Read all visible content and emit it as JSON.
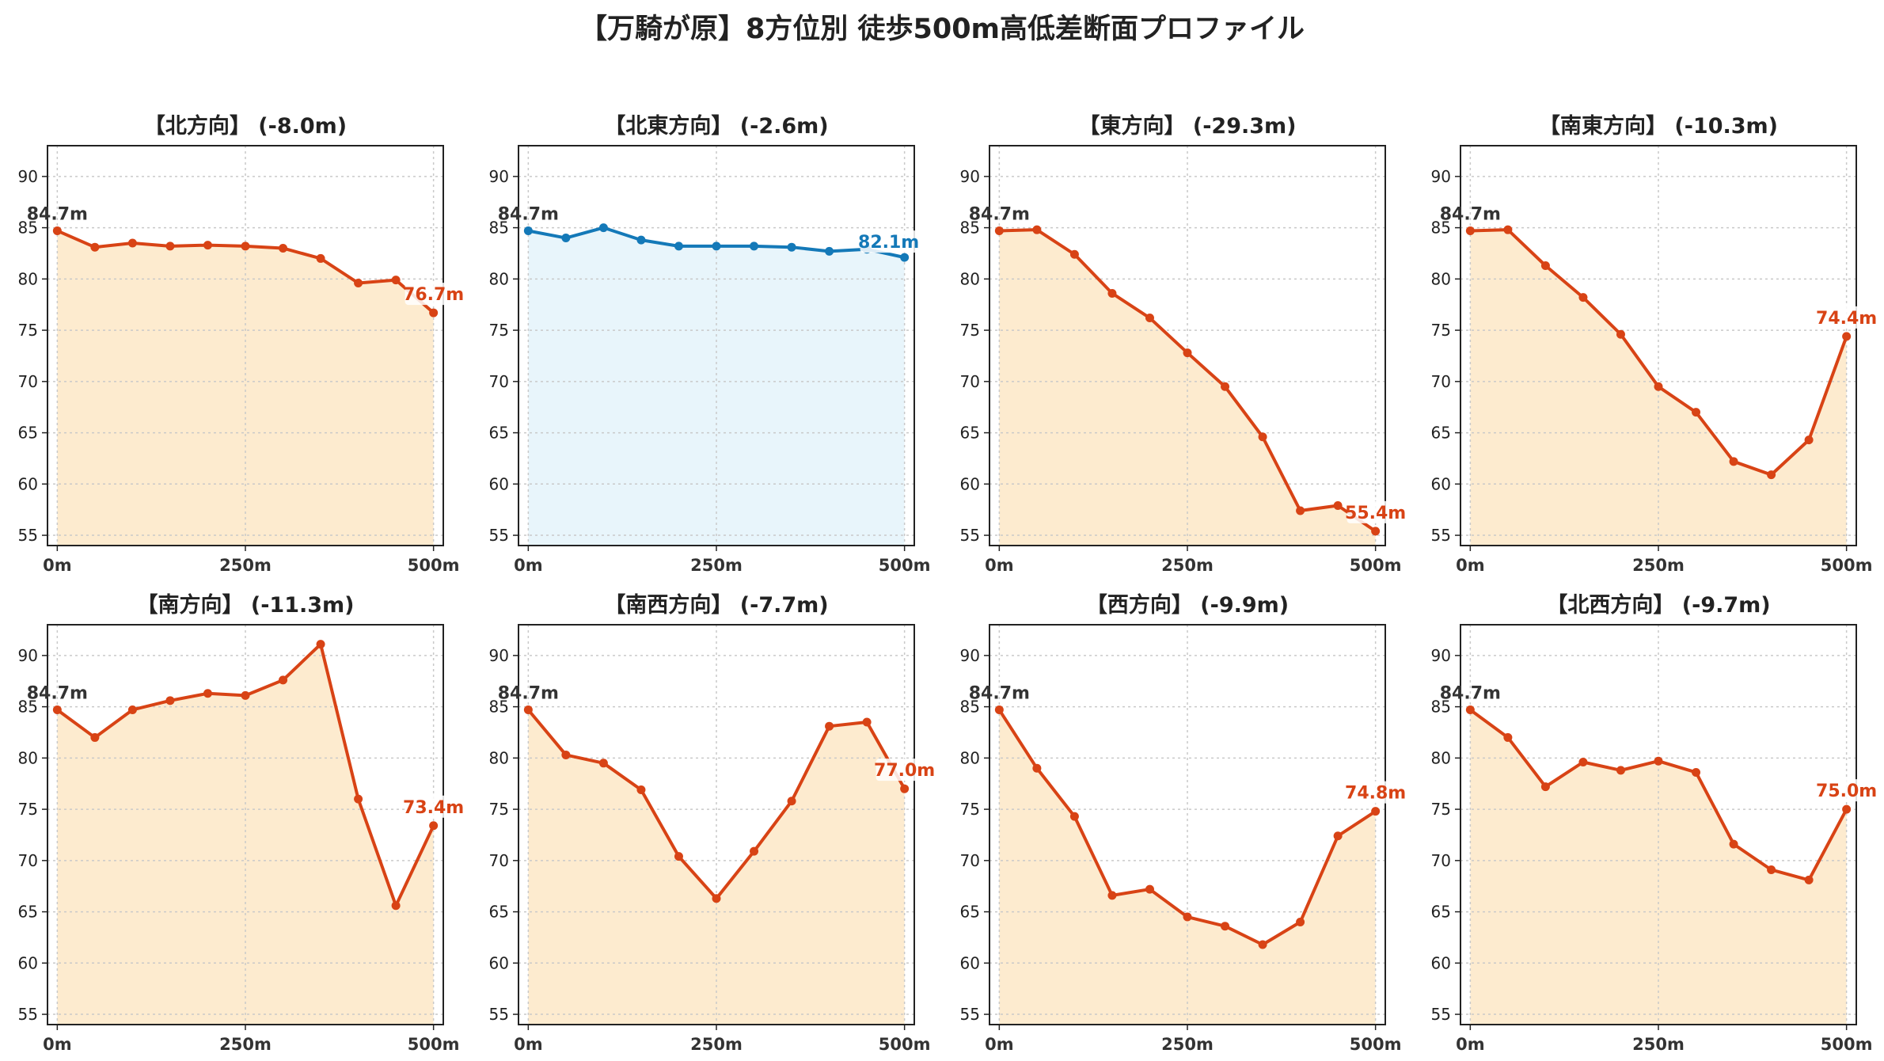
{
  "title": "【万騎が原】8方位別 徒歩500m高低差断面プロファイル",
  "chart_data": [
    {
      "type": "area",
      "title": "【北方向】 (-8.0m)",
      "color": "#d84315",
      "fill": "#fdebcf",
      "x": [
        0,
        50,
        100,
        150,
        200,
        250,
        300,
        350,
        400,
        450,
        500
      ],
      "values": [
        84.7,
        83.1,
        83.5,
        83.2,
        83.3,
        83.2,
        83.0,
        82.0,
        79.6,
        79.9,
        76.7
      ],
      "start_label": "84.7m",
      "end_label": "76.7m"
    },
    {
      "type": "area",
      "title": "【北東方向】 (-2.6m)",
      "color": "#1479b8",
      "fill": "#e8f5fb",
      "x": [
        0,
        50,
        100,
        150,
        200,
        250,
        300,
        350,
        400,
        450,
        500
      ],
      "values": [
        84.7,
        84.0,
        85.0,
        83.8,
        83.2,
        83.2,
        83.2,
        83.1,
        82.7,
        82.9,
        82.1
      ],
      "start_label": "84.7m",
      "end_label": "82.1m"
    },
    {
      "type": "area",
      "title": "【東方向】 (-29.3m)",
      "color": "#d84315",
      "fill": "#fdebcf",
      "x": [
        0,
        50,
        100,
        150,
        200,
        250,
        300,
        350,
        400,
        450,
        500
      ],
      "values": [
        84.7,
        84.8,
        82.4,
        78.6,
        76.2,
        72.8,
        69.5,
        64.6,
        57.4,
        57.9,
        55.4
      ],
      "start_label": "84.7m",
      "end_label": "55.4m"
    },
    {
      "type": "area",
      "title": "【南東方向】 (-10.3m)",
      "color": "#d84315",
      "fill": "#fdebcf",
      "x": [
        0,
        50,
        100,
        150,
        200,
        250,
        300,
        350,
        400,
        450,
        500
      ],
      "values": [
        84.7,
        84.8,
        81.3,
        78.2,
        74.6,
        69.5,
        67.0,
        62.2,
        60.9,
        64.3,
        74.4
      ],
      "start_label": "84.7m",
      "end_label": "74.4m"
    },
    {
      "type": "area",
      "title": "【南方向】 (-11.3m)",
      "color": "#d84315",
      "fill": "#fdebcf",
      "x": [
        0,
        50,
        100,
        150,
        200,
        250,
        300,
        350,
        400,
        450,
        500
      ],
      "values": [
        84.7,
        82.0,
        84.7,
        85.6,
        86.3,
        86.1,
        87.6,
        91.1,
        76.0,
        65.6,
        73.4
      ],
      "start_label": "84.7m",
      "end_label": "73.4m"
    },
    {
      "type": "area",
      "title": "【南西方向】 (-7.7m)",
      "color": "#d84315",
      "fill": "#fdebcf",
      "x": [
        0,
        50,
        100,
        150,
        200,
        250,
        300,
        350,
        400,
        450,
        500
      ],
      "values": [
        84.7,
        80.3,
        79.5,
        76.9,
        70.4,
        66.3,
        70.9,
        75.8,
        83.1,
        83.5,
        77.0
      ],
      "start_label": "84.7m",
      "end_label": "77.0m"
    },
    {
      "type": "area",
      "title": "【西方向】 (-9.9m)",
      "color": "#d84315",
      "fill": "#fdebcf",
      "x": [
        0,
        50,
        100,
        150,
        200,
        250,
        300,
        350,
        400,
        450,
        500
      ],
      "values": [
        84.7,
        79.0,
        74.3,
        66.6,
        67.2,
        64.5,
        63.6,
        61.8,
        64.0,
        72.4,
        74.8
      ],
      "start_label": "84.7m",
      "end_label": "74.8m"
    },
    {
      "type": "area",
      "title": "【北西方向】 (-9.7m)",
      "color": "#d84315",
      "fill": "#fdebcf",
      "x": [
        0,
        50,
        100,
        150,
        200,
        250,
        300,
        350,
        400,
        450,
        500
      ],
      "values": [
        84.7,
        82.0,
        77.2,
        79.6,
        78.8,
        79.7,
        78.6,
        71.6,
        69.1,
        68.1,
        75.0
      ],
      "start_label": "84.7m",
      "end_label": "75.0m"
    }
  ],
  "axes": {
    "xlim": [
      -13,
      513
    ],
    "ylim": [
      54,
      93
    ],
    "y_ticks": [
      55,
      60,
      65,
      70,
      75,
      80,
      85,
      90
    ],
    "y_tick_labels": [
      "55",
      "60",
      "65",
      "70",
      "75",
      "80",
      "85",
      "90"
    ],
    "x_ticks": [
      0,
      250,
      500
    ],
    "x_tick_labels": [
      "0m",
      "250m",
      "500m"
    ],
    "grid": true
  }
}
